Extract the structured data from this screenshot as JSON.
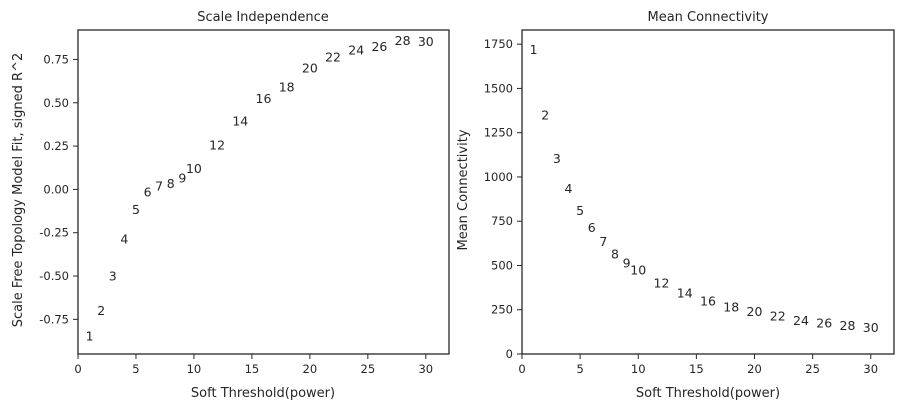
{
  "chart_data": [
    {
      "type": "scatter",
      "marker": "text-labels",
      "title": "Scale Independence",
      "xlabel": "Soft Threshold(power)",
      "ylabel": "Scale Free Topology Model Fit, signed R^2",
      "xlim": [
        0,
        32
      ],
      "ylim": [
        -0.95,
        0.92
      ],
      "xticks": [
        0,
        5,
        10,
        15,
        20,
        25,
        30
      ],
      "yticks": [
        -0.75,
        -0.5,
        -0.25,
        0.0,
        0.25,
        0.5,
        0.75
      ],
      "ytick_labels": [
        "-0.75",
        "-0.50",
        "-0.25",
        "0.00",
        "0.25",
        "0.50",
        "0.75"
      ],
      "points": [
        {
          "x": 1,
          "y": -0.845,
          "label": "1"
        },
        {
          "x": 2,
          "y": -0.7,
          "label": "2"
        },
        {
          "x": 3,
          "y": -0.5,
          "label": "3"
        },
        {
          "x": 4,
          "y": -0.285,
          "label": "4"
        },
        {
          "x": 5,
          "y": -0.115,
          "label": "5"
        },
        {
          "x": 6,
          "y": -0.015,
          "label": "6"
        },
        {
          "x": 7,
          "y": 0.02,
          "label": "7"
        },
        {
          "x": 8,
          "y": 0.035,
          "label": "8"
        },
        {
          "x": 9,
          "y": 0.065,
          "label": "9"
        },
        {
          "x": 10,
          "y": 0.12,
          "label": "10"
        },
        {
          "x": 12,
          "y": 0.255,
          "label": "12"
        },
        {
          "x": 14,
          "y": 0.395,
          "label": "14"
        },
        {
          "x": 16,
          "y": 0.525,
          "label": "16"
        },
        {
          "x": 18,
          "y": 0.59,
          "label": "18"
        },
        {
          "x": 20,
          "y": 0.7,
          "label": "20"
        },
        {
          "x": 22,
          "y": 0.765,
          "label": "22"
        },
        {
          "x": 24,
          "y": 0.805,
          "label": "24"
        },
        {
          "x": 26,
          "y": 0.825,
          "label": "26"
        },
        {
          "x": 28,
          "y": 0.86,
          "label": "28"
        },
        {
          "x": 30,
          "y": 0.855,
          "label": "30"
        }
      ]
    },
    {
      "type": "scatter",
      "marker": "text-labels",
      "title": "Mean Connectivity",
      "xlabel": "Soft Threshold(power)",
      "ylabel": "Mean Connectivity",
      "xlim": [
        0,
        32
      ],
      "ylim": [
        0,
        1830
      ],
      "xticks": [
        0,
        5,
        10,
        15,
        20,
        25,
        30
      ],
      "yticks": [
        0,
        250,
        500,
        750,
        1000,
        1250,
        1500,
        1750
      ],
      "ytick_labels": [
        "0",
        "250",
        "500",
        "750",
        "1000",
        "1250",
        "1500",
        "1750"
      ],
      "points": [
        {
          "x": 1,
          "y": 1720,
          "label": "1"
        },
        {
          "x": 2,
          "y": 1350,
          "label": "2"
        },
        {
          "x": 3,
          "y": 1105,
          "label": "3"
        },
        {
          "x": 4,
          "y": 935,
          "label": "4"
        },
        {
          "x": 5,
          "y": 810,
          "label": "5"
        },
        {
          "x": 6,
          "y": 715,
          "label": "6"
        },
        {
          "x": 7,
          "y": 635,
          "label": "7"
        },
        {
          "x": 8,
          "y": 565,
          "label": "8"
        },
        {
          "x": 9,
          "y": 515,
          "label": "9"
        },
        {
          "x": 10,
          "y": 475,
          "label": "10"
        },
        {
          "x": 12,
          "y": 400,
          "label": "12"
        },
        {
          "x": 14,
          "y": 345,
          "label": "14"
        },
        {
          "x": 16,
          "y": 300,
          "label": "16"
        },
        {
          "x": 18,
          "y": 265,
          "label": "18"
        },
        {
          "x": 20,
          "y": 240,
          "label": "20"
        },
        {
          "x": 22,
          "y": 215,
          "label": "22"
        },
        {
          "x": 24,
          "y": 190,
          "label": "24"
        },
        {
          "x": 26,
          "y": 175,
          "label": "26"
        },
        {
          "x": 28,
          "y": 160,
          "label": "28"
        },
        {
          "x": 30,
          "y": 150,
          "label": "30"
        }
      ]
    }
  ]
}
